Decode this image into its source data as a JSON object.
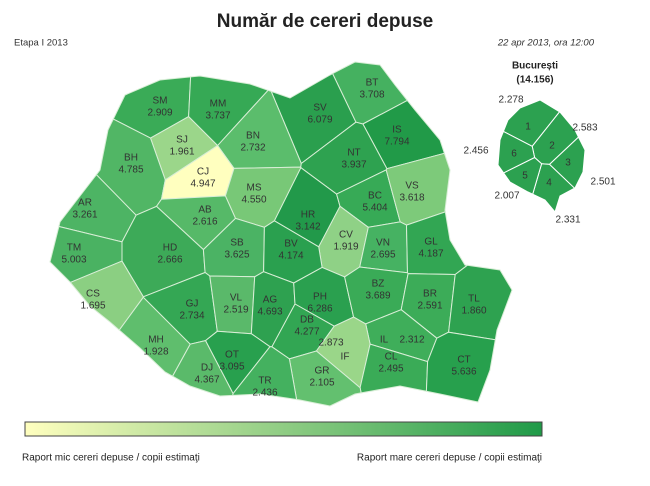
{
  "header": {
    "title": "Număr de cereri depuse",
    "stage": "Etapa I 2013",
    "date": "22 apr 2013, ora 12:00"
  },
  "counties": [
    {
      "code": "SM",
      "value": 2909,
      "label": "2.909",
      "color": "#3aab57"
    },
    {
      "code": "MM",
      "value": 3737,
      "label": "3.737",
      "color": "#36a955"
    },
    {
      "code": "BT",
      "value": 3708,
      "label": "3.708",
      "color": "#45b160"
    },
    {
      "code": "SV",
      "value": 6079,
      "label": "6.079",
      "color": "#2a9f4e"
    },
    {
      "code": "SJ",
      "value": 1961,
      "label": "1.961",
      "color": "#9bd68a"
    },
    {
      "code": "BN",
      "value": 2732,
      "label": "2.732",
      "color": "#5bbd6c"
    },
    {
      "code": "IS",
      "value": 7794,
      "label": "7.794",
      "color": "#219a48"
    },
    {
      "code": "BH",
      "value": 4785,
      "label": "4.785",
      "color": "#51b665"
    },
    {
      "code": "CJ",
      "value": 4947,
      "label": "4.947",
      "color": "#ffffbf"
    },
    {
      "code": "NT",
      "value": 3937,
      "label": "3.937",
      "color": "#2ea250"
    },
    {
      "code": "MS",
      "value": 4550,
      "label": "4.550",
      "color": "#78c877"
    },
    {
      "code": "HR",
      "value": 3142,
      "label": "3.142",
      "color": "#22994a"
    },
    {
      "code": "BC",
      "value": 5404,
      "label": "5.404",
      "color": "#37aa56"
    },
    {
      "code": "VS",
      "value": 3618,
      "label": "3.618",
      "color": "#7dca7a"
    },
    {
      "code": "AR",
      "value": 3261,
      "label": "3.261",
      "color": "#4db464"
    },
    {
      "code": "AB",
      "value": 2616,
      "label": "2.616",
      "color": "#56b968"
    },
    {
      "code": "CV",
      "value": 1919,
      "label": "1.919",
      "color": "#8fd186"
    },
    {
      "code": "TM",
      "value": 5003,
      "label": "5.003",
      "color": "#4ab262"
    },
    {
      "code": "HD",
      "value": 2666,
      "label": "2.666",
      "color": "#3daa58"
    },
    {
      "code": "SB",
      "value": 3625,
      "label": "3.625",
      "color": "#4bb364"
    },
    {
      "code": "BV",
      "value": 4174,
      "label": "4.174",
      "color": "#2aa04f"
    },
    {
      "code": "VN",
      "value": 2695,
      "label": "2.695",
      "color": "#46b262"
    },
    {
      "code": "GL",
      "value": 4187,
      "label": "4.187",
      "color": "#32a653"
    },
    {
      "code": "CS",
      "value": 1695,
      "label": "1.695",
      "color": "#8bcf82"
    },
    {
      "code": "GJ",
      "value": 2734,
      "label": "2.734",
      "color": "#34a754"
    },
    {
      "code": "VL",
      "value": 2519,
      "label": "2.519",
      "color": "#5ab96a"
    },
    {
      "code": "AG",
      "value": 4693,
      "label": "4.693",
      "color": "#2ea150"
    },
    {
      "code": "PH",
      "value": 6286,
      "label": "6.286",
      "color": "#2aa04f"
    },
    {
      "code": "BZ",
      "value": 3689,
      "label": "3.689",
      "color": "#3aab57"
    },
    {
      "code": "BR",
      "value": 2591,
      "label": "2.591",
      "color": "#3cac58"
    },
    {
      "code": "TL",
      "value": 1860,
      "label": "1.860",
      "color": "#2ea250"
    },
    {
      "code": "DB",
      "value": 4277,
      "label": "4.277",
      "color": "#32a653"
    },
    {
      "code": "MH",
      "value": 1928,
      "label": "1.928",
      "color": "#5fbe6d"
    },
    {
      "code": "IL",
      "value": 2312,
      "label": "2.312",
      "color": "#3fae5a"
    },
    {
      "code": "OT",
      "value": 3095,
      "label": "3.095",
      "color": "#28a04e"
    },
    {
      "code": "IF",
      "value": 2873,
      "label": "2.873",
      "color": "#9ad689"
    },
    {
      "code": "CL",
      "value": 2495,
      "label": "2.495",
      "color": "#3aab57"
    },
    {
      "code": "CT",
      "value": 5636,
      "label": "5.636",
      "color": "#27a04d"
    },
    {
      "code": "DJ",
      "value": 4367,
      "label": "4.367",
      "color": "#5aba6a"
    },
    {
      "code": "GR",
      "value": 2105,
      "label": "2.105",
      "color": "#63c06f"
    },
    {
      "code": "TR",
      "value": 2436,
      "label": "2.436",
      "color": "#44b15f"
    }
  ],
  "bucharest": {
    "name": "București",
    "total": 14156,
    "total_label": "(14.156)",
    "sectors": [
      {
        "sector": "1",
        "value": 2278,
        "label": "2.278",
        "color": "#2ca150"
      },
      {
        "sector": "2",
        "value": 2583,
        "label": "2.583",
        "color": "#2ca150"
      },
      {
        "sector": "3",
        "value": 2501,
        "label": "2.501",
        "color": "#2ca150"
      },
      {
        "sector": "4",
        "value": 2331,
        "label": "2.331",
        "color": "#2ca150"
      },
      {
        "sector": "5",
        "value": 2007,
        "label": "2.007",
        "color": "#2ca150"
      },
      {
        "sector": "6",
        "value": 2456,
        "label": "2.456",
        "color": "#2ca150"
      }
    ]
  },
  "legend": {
    "low": "Raport mic cereri depuse / copii estimaţi",
    "high": "Raport mare cereri depuse / copii estimaţi",
    "low_color": "#ffffbf",
    "high_color": "#1f9a48"
  }
}
